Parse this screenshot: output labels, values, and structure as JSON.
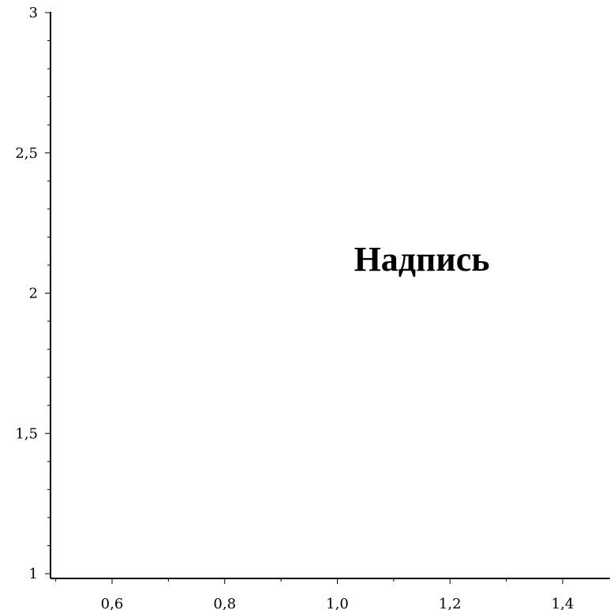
{
  "chart_data": {
    "type": "scatter",
    "title": "",
    "xlabel": "",
    "ylabel": "",
    "xlim": [
      0.5,
      1.5
    ],
    "ylim": [
      1,
      3
    ],
    "x_ticks": [
      {
        "value": 0.6,
        "label": "0,6"
      },
      {
        "value": 0.8,
        "label": "0,8"
      },
      {
        "value": 1.0,
        "label": "1,0"
      },
      {
        "value": 1.2,
        "label": "1,2"
      },
      {
        "value": 1.4,
        "label": "1,4"
      }
    ],
    "y_ticks": [
      {
        "value": 1,
        "label": "1"
      },
      {
        "value": 1.5,
        "label": "1,5"
      },
      {
        "value": 2,
        "label": "2"
      },
      {
        "value": 2.5,
        "label": "2,5"
      },
      {
        "value": 3,
        "label": "3"
      }
    ],
    "x_minor_step": 0.1,
    "y_minor_step": 0.1,
    "grid": false,
    "series": [],
    "annotations": [
      {
        "text": "Надпись",
        "x": 1.15,
        "y": 2.08
      }
    ]
  }
}
